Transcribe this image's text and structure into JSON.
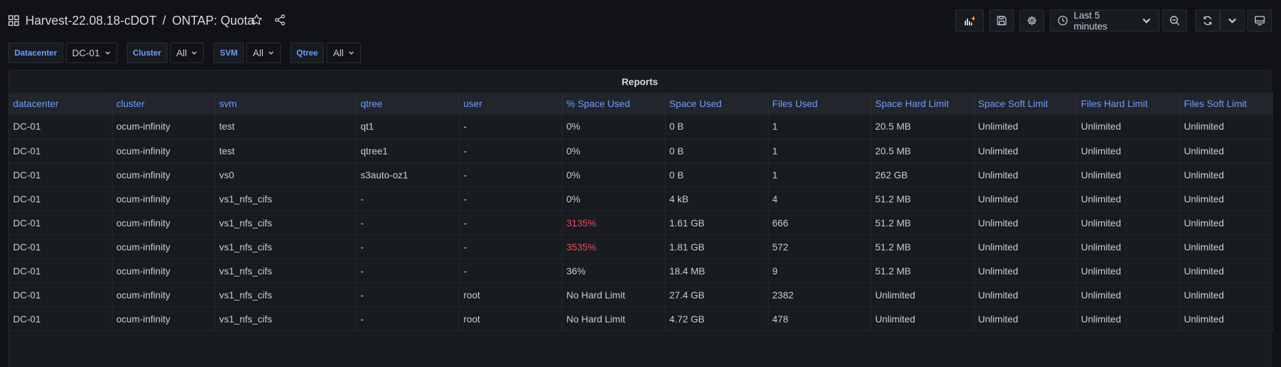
{
  "header": {
    "folder": "Harvest-22.08.18-cDOT",
    "separator": "/",
    "dashboard": "ONTAP: Quota",
    "time_range": "Last 5 minutes"
  },
  "variables": [
    {
      "label": "Datacenter",
      "value": "DC-01"
    },
    {
      "label": "Cluster",
      "value": "All"
    },
    {
      "label": "SVM",
      "value": "All"
    },
    {
      "label": "Qtree",
      "value": "All"
    }
  ],
  "panel": {
    "title": "Reports",
    "columns": [
      "datacenter",
      "cluster",
      "svm",
      "qtree",
      "user",
      "% Space Used",
      "Space Used",
      "Files Used",
      "Space Hard Limit",
      "Space Soft Limit",
      "Files Hard Limit",
      "Files Soft Limit"
    ],
    "rows": [
      [
        "DC-01",
        "ocum-infinity",
        "test",
        "qt1",
        "-",
        "0%",
        "0 B",
        "1",
        "20.5 MB",
        "Unlimited",
        "Unlimited",
        "Unlimited"
      ],
      [
        "DC-01",
        "ocum-infinity",
        "test",
        "qtree1",
        "-",
        "0%",
        "0 B",
        "1",
        "20.5 MB",
        "Unlimited",
        "Unlimited",
        "Unlimited"
      ],
      [
        "DC-01",
        "ocum-infinity",
        "vs0",
        "s3auto-oz1",
        "-",
        "0%",
        "0 B",
        "1",
        "262 GB",
        "Unlimited",
        "Unlimited",
        "Unlimited"
      ],
      [
        "DC-01",
        "ocum-infinity",
        "vs1_nfs_cifs",
        "-",
        "-",
        "0%",
        "4 kB",
        "4",
        "51.2 MB",
        "Unlimited",
        "Unlimited",
        "Unlimited"
      ],
      [
        "DC-01",
        "ocum-infinity",
        "vs1_nfs_cifs",
        "-",
        "-",
        "3135%",
        "1.61 GB",
        "666",
        "51.2 MB",
        "Unlimited",
        "Unlimited",
        "Unlimited"
      ],
      [
        "DC-01",
        "ocum-infinity",
        "vs1_nfs_cifs",
        "-",
        "-",
        "3535%",
        "1.81 GB",
        "572",
        "51.2 MB",
        "Unlimited",
        "Unlimited",
        "Unlimited"
      ],
      [
        "DC-01",
        "ocum-infinity",
        "vs1_nfs_cifs",
        "-",
        "-",
        "36%",
        "18.4 MB",
        "9",
        "51.2 MB",
        "Unlimited",
        "Unlimited",
        "Unlimited"
      ],
      [
        "DC-01",
        "ocum-infinity",
        "vs1_nfs_cifs",
        "-",
        "root",
        "No Hard Limit",
        "27.4 GB",
        "2382",
        "Unlimited",
        "Unlimited",
        "Unlimited",
        "Unlimited"
      ],
      [
        "DC-01",
        "ocum-infinity",
        "vs1_nfs_cifs",
        "-",
        "root",
        "No Hard Limit",
        "4.72 GB",
        "478",
        "Unlimited",
        "Unlimited",
        "Unlimited",
        "Unlimited"
      ]
    ],
    "highlight_color": "#f2495c",
    "highlighted_cells": [
      [
        4,
        5
      ],
      [
        5,
        5
      ]
    ]
  },
  "icons": [
    "apps-icon",
    "star-icon",
    "share-icon",
    "add-panel-icon",
    "save-icon",
    "settings-icon",
    "clock-icon",
    "chevron-down-icon",
    "zoom-out-icon",
    "refresh-icon",
    "tv-mode-icon"
  ]
}
